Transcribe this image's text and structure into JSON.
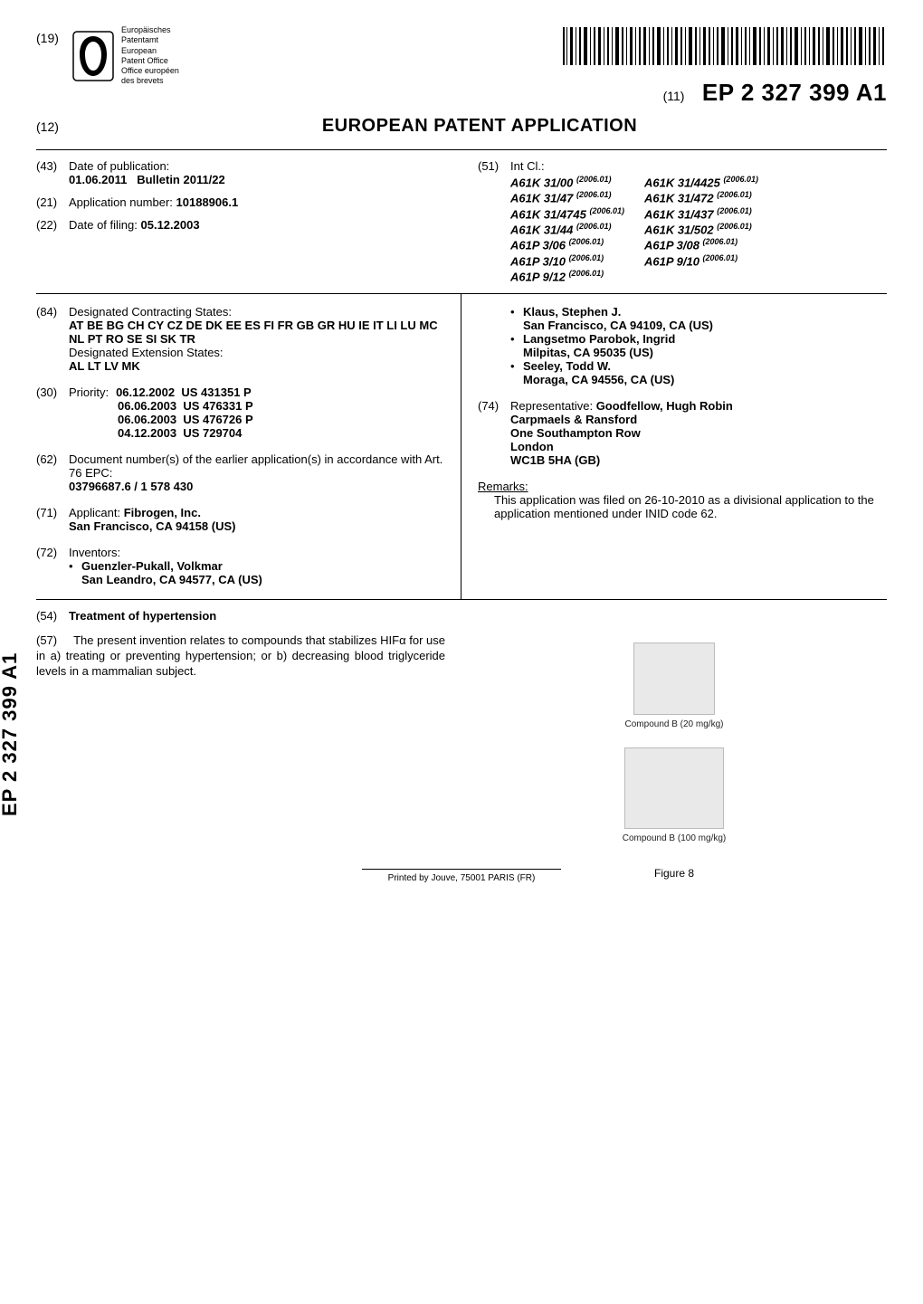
{
  "header": {
    "n19": "(19)",
    "logo_text_lines": [
      "Europäisches",
      "Patentamt",
      "European",
      "Patent Office",
      "Office européen",
      "des brevets"
    ],
    "n11": "(11)",
    "pub_number": "EP 2 327 399 A1",
    "n12": "(12)",
    "app_title": "EUROPEAN PATENT APPLICATION"
  },
  "meta": {
    "n43": "(43)",
    "date_pub_label": "Date of publication:",
    "date_pub_value_date": "01.06.2011",
    "date_pub_value_bull": "Bulletin 2011/22",
    "n21": "(21)",
    "app_num_label": "Application number:",
    "app_num_value": "10188906.1",
    "n22": "(22)",
    "filing_label": "Date of filing:",
    "filing_value": "05.12.2003",
    "n51": "(51)",
    "intcl_label": "Int Cl.:",
    "ipc_left": [
      "A61K 31/00",
      "A61K 31/47",
      "A61K 31/4745",
      "A61K 31/44",
      "A61P 3/06",
      "A61P 3/10",
      "A61P 9/12"
    ],
    "ipc_right": [
      "A61K 31/4425",
      "A61K 31/472",
      "A61K 31/437",
      "A61K 31/502",
      "A61P 3/08",
      "A61P 9/10"
    ],
    "ipc_year": "(2006.01)"
  },
  "body": {
    "n84": "(84)",
    "states_label": "Designated Contracting States:",
    "states_value": "AT BE BG CH CY CZ DE DK EE ES FI FR GB GR HU IE IT LI LU MC NL PT RO SE SI SK TR",
    "ext_label": "Designated Extension States:",
    "ext_value": "AL LT LV MK",
    "n30": "(30)",
    "prio_label": "Priority:",
    "priorities": [
      {
        "date": "06.12.2002",
        "num": "US 431351 P"
      },
      {
        "date": "06.06.2003",
        "num": "US 476331 P"
      },
      {
        "date": "06.06.2003",
        "num": "US 476726 P"
      },
      {
        "date": "04.12.2003",
        "num": "US 729704"
      }
    ],
    "n62": "(62)",
    "docnum_label": "Document number(s) of the earlier application(s) in accordance with Art. 76 EPC:",
    "docnum_value": "03796687.6 / 1 578 430",
    "n71": "(71)",
    "applicant_label": "Applicant:",
    "applicant_name": "Fibrogen, Inc.",
    "applicant_addr": "San Francisco, CA 94158 (US)",
    "n72": "(72)",
    "inventors_label": "Inventors:",
    "inventors": [
      {
        "name": "Guenzler-Pukall, Volkmar",
        "addr": "San Leandro, CA 94577, CA (US)"
      },
      {
        "name": "Klaus, Stephen J.",
        "addr": "San Francisco, CA 94109, CA (US)"
      },
      {
        "name": "Langsetmo Parobok, Ingrid",
        "addr": "Milpitas, CA 95035 (US)"
      },
      {
        "name": "Seeley, Todd W.",
        "addr": "Moraga, CA 94556, CA (US)"
      }
    ],
    "n74": "(74)",
    "rep_label": "Representative:",
    "rep_name": "Goodfellow, Hugh Robin",
    "rep_lines": [
      "Carpmaels & Ransford",
      "One Southampton Row",
      "London",
      "WC1B 5HA (GB)"
    ],
    "remarks_head": "Remarks:",
    "remarks_text": "This application was filed on 26-10-2010 as a divisional application to the application mentioned under INID code 62."
  },
  "title": {
    "n54": "(54)",
    "text": "Treatment of hypertension"
  },
  "abstract": {
    "n57": "(57)",
    "text": "The present invention relates to compounds that stabilizes HIFα for use in a) treating or preventing hypertension; or b) decreasing blood triglyceride levels in a mammalian subject.",
    "img1_caption": "Compound B (20 mg/kg)",
    "img2_caption": "Compound B (100 mg/kg)",
    "fig_label": "Figure 8"
  },
  "side_label": "EP 2 327 399 A1",
  "footer": "Printed by Jouve, 75001 PARIS (FR)"
}
